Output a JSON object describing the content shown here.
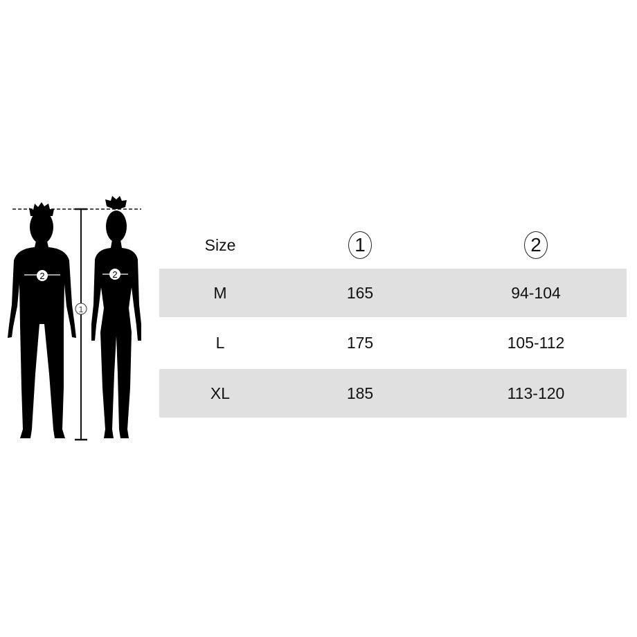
{
  "table": {
    "headers": [
      "Size",
      "1",
      "2"
    ],
    "rows": [
      [
        "M",
        "165",
        "94-104"
      ],
      [
        "L",
        "175",
        "105-112"
      ],
      [
        "XL",
        "185",
        "113-120"
      ]
    ]
  },
  "figure": {
    "height_marker": "1",
    "chest_marker": "2",
    "icons": [
      "male-silhouette",
      "female-silhouette",
      "height-measure-line"
    ]
  },
  "colors": {
    "silhouette": "#000000",
    "row_shade": "#e0e0e0"
  }
}
